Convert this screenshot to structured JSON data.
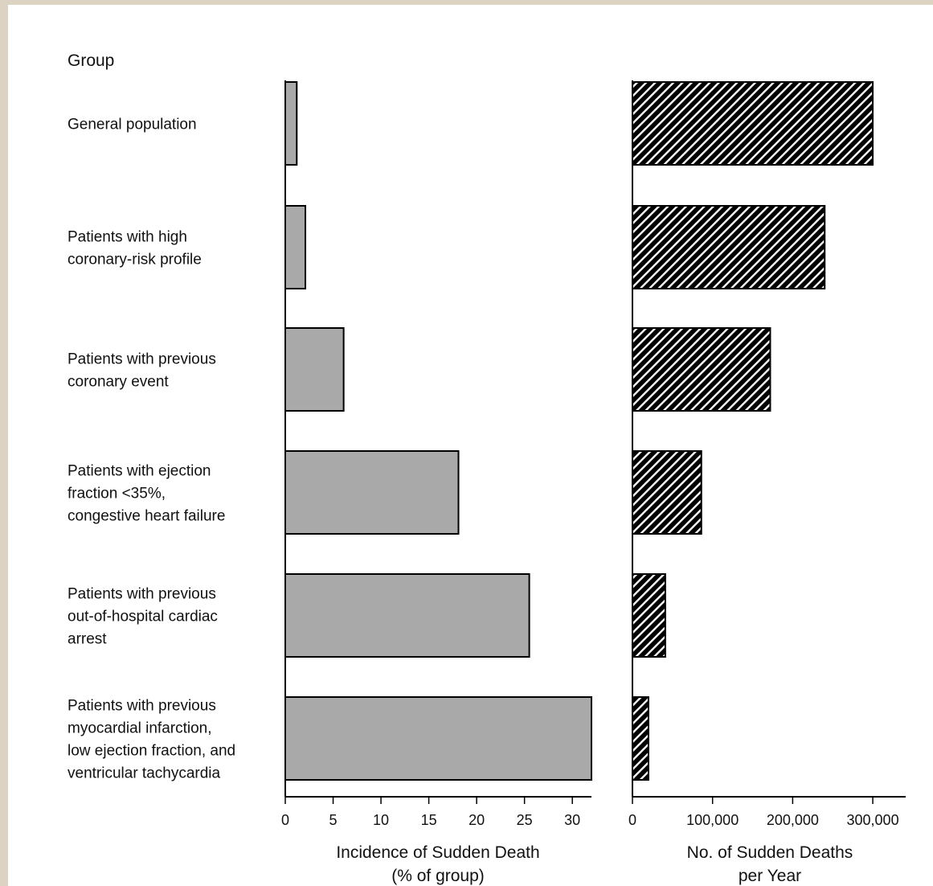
{
  "chart_data": {
    "type": "bar",
    "orientation": "horizontal",
    "group_header": "Group",
    "categories": [
      [
        "General population"
      ],
      [
        "Patients with high",
        "coronary-risk profile"
      ],
      [
        "Patients with previous",
        "coronary event"
      ],
      [
        "Patients with ejection",
        "fraction <35%,",
        "congestive heart failure"
      ],
      [
        "Patients with previous",
        "out-of-hospital cardiac",
        "arrest"
      ],
      [
        "Patients with previous",
        "myocardial infarction,",
        "low ejection fraction, and",
        "ventricular tachycardia"
      ]
    ],
    "panels": [
      {
        "xlabel": [
          "Incidence of Sudden Death",
          "(% of group)"
        ],
        "values": [
          1.2,
          2.1,
          6.1,
          18.1,
          25.5,
          32.0
        ],
        "xlim": [
          0,
          32
        ],
        "ticks": [
          0,
          5,
          10,
          15,
          20,
          25,
          30
        ],
        "tick_labels": [
          "0",
          "5",
          "10",
          "15",
          "20",
          "25",
          "30"
        ],
        "fill": "#a9a9a9",
        "pattern": "solid"
      },
      {
        "xlabel": [
          "No. of Sudden Deaths",
          "per Year"
        ],
        "values": [
          300000,
          240000,
          172000,
          86000,
          41000,
          20000
        ],
        "xlim": [
          0,
          320000
        ],
        "ticks": [
          0,
          100000,
          200000,
          300000
        ],
        "tick_labels": [
          "0",
          "100,000",
          "200,000",
          "300,000"
        ],
        "fill": "#000000",
        "pattern": "diagonal-hatch"
      }
    ]
  }
}
